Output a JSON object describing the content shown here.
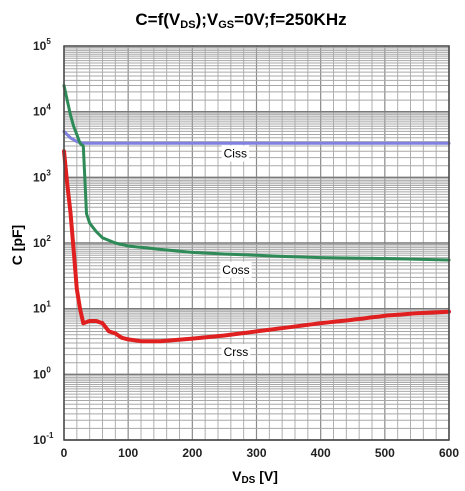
{
  "chart_data": {
    "type": "line",
    "title": "C=f(VDS);VGS=0V;f=250KHz",
    "xlabel": "VDS [V]",
    "ylabel": "C [pF]",
    "xlim": [
      0,
      600
    ],
    "ylim": [
      0.1,
      100000
    ],
    "yscale": "log",
    "grid": true,
    "x_ticks": [
      0,
      100,
      200,
      300,
      400,
      500,
      600
    ],
    "y_ticks": [
      {
        "value": 0.1,
        "base": "10",
        "exp": "-1"
      },
      {
        "value": 1,
        "base": "10",
        "exp": "0"
      },
      {
        "value": 10,
        "base": "10",
        "exp": "1"
      },
      {
        "value": 100,
        "base": "10",
        "exp": "2"
      },
      {
        "value": 1000,
        "base": "10",
        "exp": "3"
      },
      {
        "value": 10000,
        "base": "10",
        "exp": "4"
      },
      {
        "value": 100000,
        "base": "10",
        "exp": "5"
      }
    ],
    "series": [
      {
        "name": "Ciss",
        "color": "#8080e0",
        "x": [
          0,
          10,
          20,
          30,
          50,
          100,
          200,
          300,
          400,
          500,
          600
        ],
        "y": [
          5000,
          4000,
          3500,
          3300,
          3300,
          3300,
          3300,
          3300,
          3300,
          3300,
          3300
        ]
      },
      {
        "name": "Coss",
        "color": "#2e8b57",
        "x": [
          0,
          5,
          10,
          15,
          20,
          25,
          30,
          35,
          40,
          50,
          60,
          80,
          100,
          150,
          200,
          250,
          300,
          350,
          400,
          500,
          600
        ],
        "y": [
          25000,
          15000,
          9000,
          6000,
          4500,
          3300,
          3000,
          280,
          200,
          150,
          120,
          100,
          90,
          80,
          72,
          68,
          65,
          62,
          60,
          58,
          55
        ]
      },
      {
        "name": "Crss",
        "color": "#e02020",
        "x": [
          0,
          5,
          10,
          15,
          20,
          25,
          30,
          40,
          50,
          60,
          70,
          80,
          90,
          100,
          120,
          150,
          200,
          250,
          300,
          350,
          400,
          450,
          500,
          550,
          600
        ],
        "y": [
          2500,
          800,
          300,
          80,
          20,
          10,
          6,
          6.5,
          6.5,
          6,
          4.5,
          4.2,
          3.6,
          3.4,
          3.2,
          3.2,
          3.5,
          3.9,
          4.5,
          5.2,
          6,
          6.8,
          7.8,
          8.5,
          9
        ]
      }
    ]
  }
}
